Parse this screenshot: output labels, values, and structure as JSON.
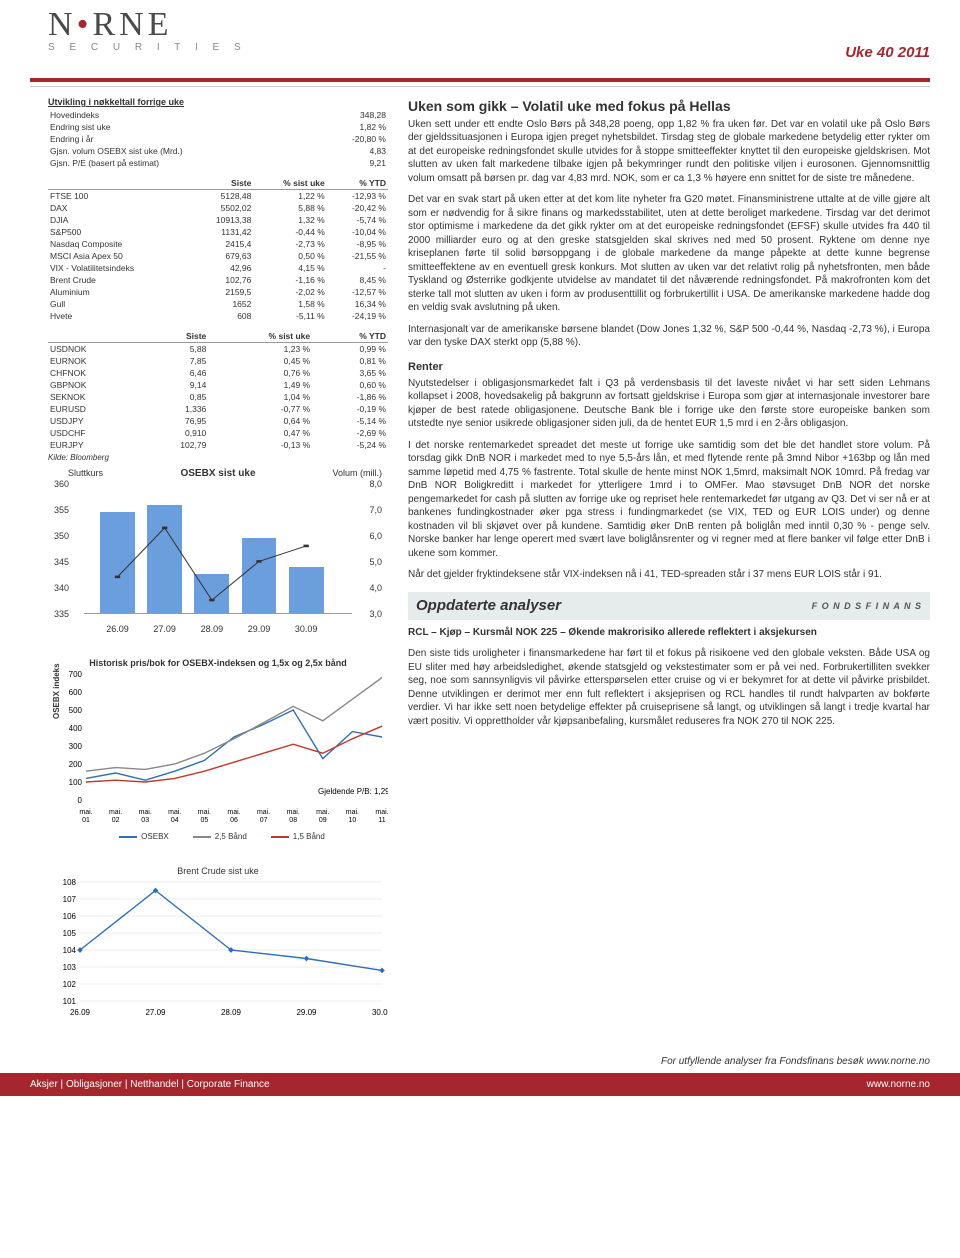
{
  "header": {
    "brand_main": "N   RNE",
    "brand_sub": "S E C U R I T I E S",
    "week_label": "Uke 40 2011"
  },
  "tbl_keyfig": {
    "caption": "Utvikling i nøkkeltall forrige uke",
    "rows": [
      [
        "Hovedindeks",
        "348,28"
      ],
      [
        "Endring sist uke",
        "1,82 %"
      ],
      [
        "Endring i år",
        "-20,80 %"
      ],
      [
        "Gjsn. volum OSEBX sist uke (Mrd.)",
        "4,83"
      ],
      [
        "Gjsn. P/E (basert på estimat)",
        "9,21"
      ]
    ]
  },
  "tbl_indices": {
    "headers": [
      "",
      "Siste",
      "% sist uke",
      "% YTD"
    ],
    "rows": [
      [
        "FTSE 100",
        "5128,48",
        "1,22 %",
        "-12,93 %"
      ],
      [
        "DAX",
        "5502,02",
        "5,88 %",
        "-20,42 %"
      ],
      [
        "DJIA",
        "10913,38",
        "1,32 %",
        "-5,74 %"
      ],
      [
        "S&P500",
        "1131,42",
        "-0,44 %",
        "-10,04 %"
      ],
      [
        "Nasdaq Composite",
        "2415,4",
        "-2,73 %",
        "-8,95 %"
      ],
      [
        "MSCI Asia Apex 50",
        "679,63",
        "0,50 %",
        "-21,55 %"
      ],
      [
        "VIX - Volatilitetsindeks",
        "42,96",
        "4,15 %",
        "-"
      ],
      [
        "Brent Crude",
        "102,76",
        "-1,16 %",
        "8,45 %"
      ],
      [
        "Aluminium",
        "2159,5",
        "-2,02 %",
        "-12,57 %"
      ],
      [
        "Gull",
        "1652",
        "1,58 %",
        "16,34 %"
      ],
      [
        "Hvete",
        "608",
        "-5,11 %",
        "-24,19 %"
      ]
    ]
  },
  "tbl_fx": {
    "headers": [
      "",
      "Siste",
      "% sist uke",
      "% YTD"
    ],
    "rows": [
      [
        "USDNOK",
        "5,88",
        "1,23 %",
        "0,99 %"
      ],
      [
        "EURNOK",
        "7,85",
        "0,45 %",
        "0,81 %"
      ],
      [
        "CHFNOK",
        "6,46",
        "0,76 %",
        "3,65 %"
      ],
      [
        "GBPNOK",
        "9,14",
        "1,49 %",
        "0,60 %"
      ],
      [
        "SEKNOK",
        "0,85",
        "1,04 %",
        "-1,86 %"
      ],
      [
        "EURUSD",
        "1,336",
        "-0,77 %",
        "-0,19 %"
      ],
      [
        "USDJPY",
        "76,95",
        "0,64 %",
        "-5,14 %"
      ],
      [
        "USDCHF",
        "0,910",
        "0,47 %",
        "-2,69 %"
      ],
      [
        "EURJPY",
        "102,79",
        "-0,13 %",
        "-5,24 %"
      ]
    ],
    "source": "Kilde: Bloomberg"
  },
  "chart_osebx": {
    "type": "bar+line",
    "left_label": "Sluttkurs",
    "title": "OSEBX sist uke",
    "right_label": "Volum (mill.)",
    "y_left": {
      "min": 335,
      "max": 360,
      "ticks": [
        335,
        340,
        345,
        350,
        355,
        360
      ]
    },
    "y_right": {
      "min": 3.0,
      "max": 8.0,
      "ticks": [
        "3,0",
        "4,0",
        "5,0",
        "6,0",
        "7,0",
        "8,0"
      ]
    },
    "x_labels": [
      "26.09",
      "27.09",
      "28.09",
      "29.09",
      "30.09"
    ],
    "bar_color": "#6a9edc",
    "line_color": "#333333",
    "bars_pct_height": [
      78,
      84,
      30,
      58,
      36
    ],
    "line_pts_pct": [
      28,
      66,
      10,
      40,
      52
    ]
  },
  "chart_pb": {
    "type": "line",
    "title": "Historisk pris/bok for OSEBX-indeksen og 1,5x og 2,5x bånd",
    "ylabel": "OSEBX indeks",
    "y": {
      "min": 0,
      "max": 700,
      "ticks": [
        0,
        100,
        200,
        300,
        400,
        500,
        600,
        700
      ]
    },
    "x_labels": [
      "mai. 01",
      "mai. 02",
      "mai. 03",
      "mai. 04",
      "mai. 05",
      "mai. 06",
      "mai. 07",
      "mai. 08",
      "mai. 09",
      "mai. 10",
      "mai. 11"
    ],
    "note": "Gjeldende P/B: 1,29",
    "series": {
      "osebx": {
        "color": "#2e6fb7",
        "pts": [
          120,
          150,
          110,
          160,
          220,
          350,
          420,
          500,
          230,
          380,
          350
        ]
      },
      "band25": {
        "color": "#888888",
        "pts": [
          160,
          180,
          170,
          200,
          260,
          340,
          430,
          520,
          440,
          560,
          680
        ]
      },
      "band15": {
        "color": "#c0392b",
        "pts": [
          100,
          110,
          100,
          120,
          160,
          210,
          260,
          310,
          260,
          340,
          410
        ]
      }
    },
    "legend": [
      {
        "label": "OSEBX",
        "color": "#2e6fb7"
      },
      {
        "label": "2,5 Bånd",
        "color": "#888888"
      },
      {
        "label": "1,5 Bånd",
        "color": "#c0392b"
      }
    ]
  },
  "chart_brent": {
    "type": "line",
    "title": "Brent Crude sist uke",
    "y": {
      "min": 101,
      "max": 108,
      "ticks": [
        101,
        102,
        103,
        104,
        105,
        106,
        107,
        108
      ]
    },
    "x_labels": [
      "26.09",
      "27.09",
      "28.09",
      "29.09",
      "30.09"
    ],
    "color": "#2e6fb7",
    "pts": [
      104,
      107.5,
      104,
      103.5,
      102.8
    ]
  },
  "article": {
    "h1": "Uken som gikk – Volatil uke med fokus på Hellas",
    "p1": "Uken sett under ett endte Oslo Børs på 348,28 poeng, opp 1,82 % fra uken før. Det var en volatil uke på Oslo Børs der gjeldssituasjonen i Europa igjen preget nyhetsbildet. Tirsdag steg de globale markedene betydelig etter rykter om at det europeiske redningsfondet skulle utvides for å stoppe smitteeffekter knyttet til den europeiske gjeldskrisen. Mot slutten av uken falt markedene tilbake igjen på bekymringer rundt den politiske viljen i eurosonen. Gjennomsnittlig volum omsatt på børsen pr. dag var 4,83 mrd. NOK, som er ca 1,3 % høyere enn snittet for de siste tre månedene.",
    "p2": "Det var en svak start på uken etter at det kom lite nyheter fra G20 møtet. Finansministrene uttalte at de ville gjøre alt som er nødvendig for å sikre finans og markedsstabilitet, uten at dette beroliget markedene. Tirsdag var det derimot stor optimisme i markedene da det gikk rykter om at det europeiske redningsfondet (EFSF) skulle utvides fra 440 til 2000 milliarder euro og at den greske statsgjelden skal skrives ned med 50 prosent. Ryktene om denne nye kriseplanen førte til solid børsoppgang i de globale markedene da mange påpekte at dette kunne begrense smitteeffektene av en eventuell gresk konkurs. Mot slutten av uken var det relativt rolig på nyhetsfronten, men både Tyskland og Østerrike godkjente utvidelse av mandatet til det nåværende redningsfondet. På makrofronten kom det sterke tall mot slutten av uken i form av produsenttillit og forbrukertillit i USA. De amerikanske markedene hadde dog en veldig svak avslutning på uken.",
    "p3": "Internasjonalt var de amerikanske børsene blandet (Dow Jones 1,32 %, S&P 500 -0,44 %, Nasdaq -2,73 %), i Europa var den tyske DAX sterkt opp (5,88 %).",
    "h_renter": "Renter",
    "p4": "Nyutstedelser i obligasjonsmarkedet falt i Q3 på verdensbasis til det laveste nivået vi har sett siden Lehmans kollapset i 2008, hovedsakelig på bakgrunn av fortsatt gjeldskrise i Europa som gjør at internasjonale investorer bare kjøper de best ratede obligasjonene. Deutsche Bank ble i forrige uke den første store europeiske banken som utstedte nye senior usikrede obligasjoner siden juli, da de hentet EUR 1,5 mrd i en 2-års obligasjon.",
    "p5": "I det norske rentemarkedet spreadet det meste ut forrige uke samtidig som det ble det handlet store volum. På torsdag gikk DnB NOR i markedet med to nye 5,5-års lån, et med flytende rente på 3mnd Nibor +163bp og lån med samme løpetid med 4,75 % fastrente. Total skulle de hente minst NOK 1,5mrd, maksimalt NOK 10mrd.  På fredag var DnB NOR Boligkreditt i markedet for ytterligere 1mrd i to OMFer. Mao støvsuget DnB NOR det norske pengemarkedet for cash på slutten av forrige uke og repriset hele rentemarkedet før utgang av Q3. Det vi ser nå er at bankenes fundingkostnader øker pga stress i fundingmarkedet (se VIX, TED og EUR LOIS under) og denne kostnaden vil bli skjøvet over på kundene. Samtidig øker DnB renten på boliglån med inntil 0,30 % - penge selv. Norske banker har lenge operert med svært lave boliglånsrenter og vi regner med at flere banker vil følge etter DnB i ukene som kommer.",
    "p6": "Når det gjelder fryktindeksene står VIX-indeksen nå i 41, TED-spreaden står i 37 mens EUR LOIS står i 91.",
    "section_bar": "Oppdaterte analyser",
    "ff_brand": "F O N D S F I N A N S",
    "h_rcl": "RCL – Kjøp – Kursmål NOK 225 – Økende makrorisiko allerede reflektert i aksjekursen",
    "p7": "Den siste tids uroligheter i finansmarkedene har ført til et fokus på risikoene ved den globale veksten. Både USA og EU sliter med høy arbeidsledighet, økende statsgjeld og vekstestimater som er på vei ned. Forbrukertilliten svekker seg, noe som sannsynligvis vil påvirke etterspørselen etter cruise og vi er bekymret for at dette vil påvirke prisbildet. Denne utviklingen er derimot mer enn fult reflektert i aksjeprisen og RCL handles til rundt halvparten av bokførte verdier. Vi har ikke sett noen betydelige effekter på cruiseprisene så langt, og utviklingen så langt i tredje kvartal har vært positiv. Vi opprettholder vår kjøpsanbefaling, kursmålet reduseres fra NOK 270 til NOK 225."
  },
  "footer_note": "For utfyllende analyser fra Fondsfinans besøk www.norne.no",
  "footer": {
    "left": "Aksjer | Obligasjoner | Netthandel | Corporate Finance",
    "right": "www.norne.no"
  }
}
